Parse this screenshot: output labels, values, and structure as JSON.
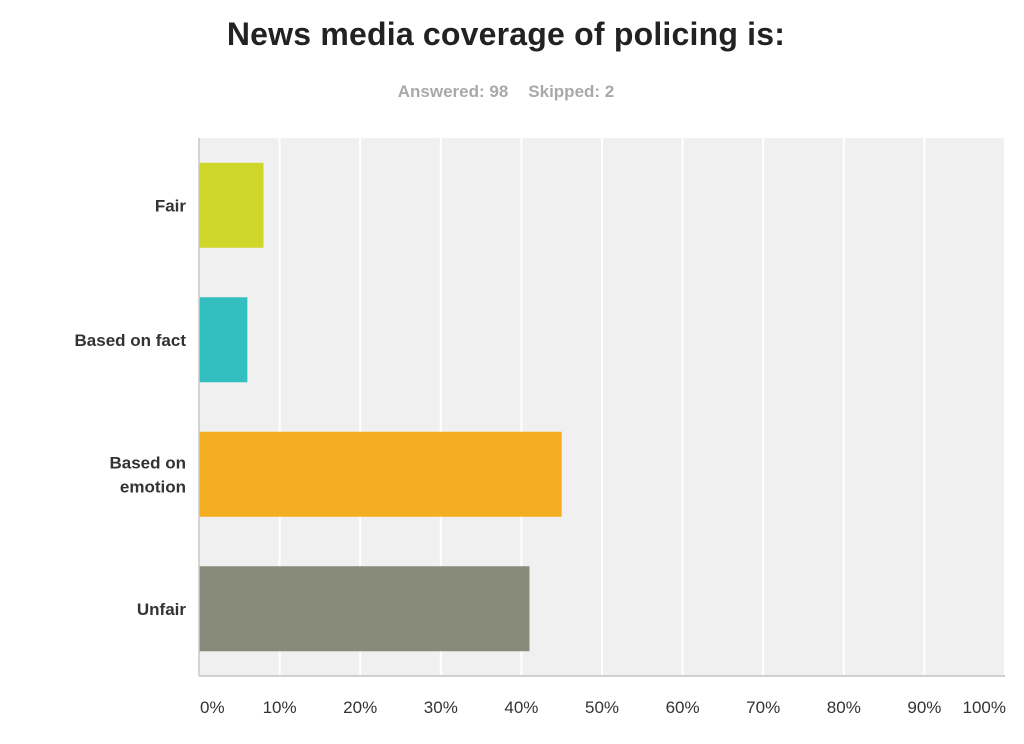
{
  "header": {
    "title": "News media coverage of policing is:",
    "answered": "Answered: 98",
    "skipped": "Skipped: 2"
  },
  "chart_data": {
    "type": "bar",
    "orientation": "horizontal",
    "title": "News media coverage of policing is:",
    "categories": [
      "Fair",
      "Based on fact",
      "Based on emotion",
      "Unfair"
    ],
    "category_label_lines": [
      [
        "Fair"
      ],
      [
        "Based on fact"
      ],
      [
        "Based on",
        "emotion"
      ],
      [
        "Unfair"
      ]
    ],
    "values": [
      8,
      6,
      45,
      41
    ],
    "value_unit": "%",
    "colors": [
      "#cdd629",
      "#33bfbf",
      "#f5ae21",
      "#888a7a"
    ],
    "xlim": [
      0,
      100
    ],
    "xticks": [
      0,
      10,
      20,
      30,
      40,
      50,
      60,
      70,
      80,
      90,
      100
    ],
    "xtick_labels": [
      "0%",
      "10%",
      "20%",
      "30%",
      "40%",
      "50%",
      "60%",
      "70%",
      "80%",
      "90%",
      "100%"
    ],
    "grid": true,
    "plot_background": "#f0f0f0",
    "legend": "none"
  }
}
